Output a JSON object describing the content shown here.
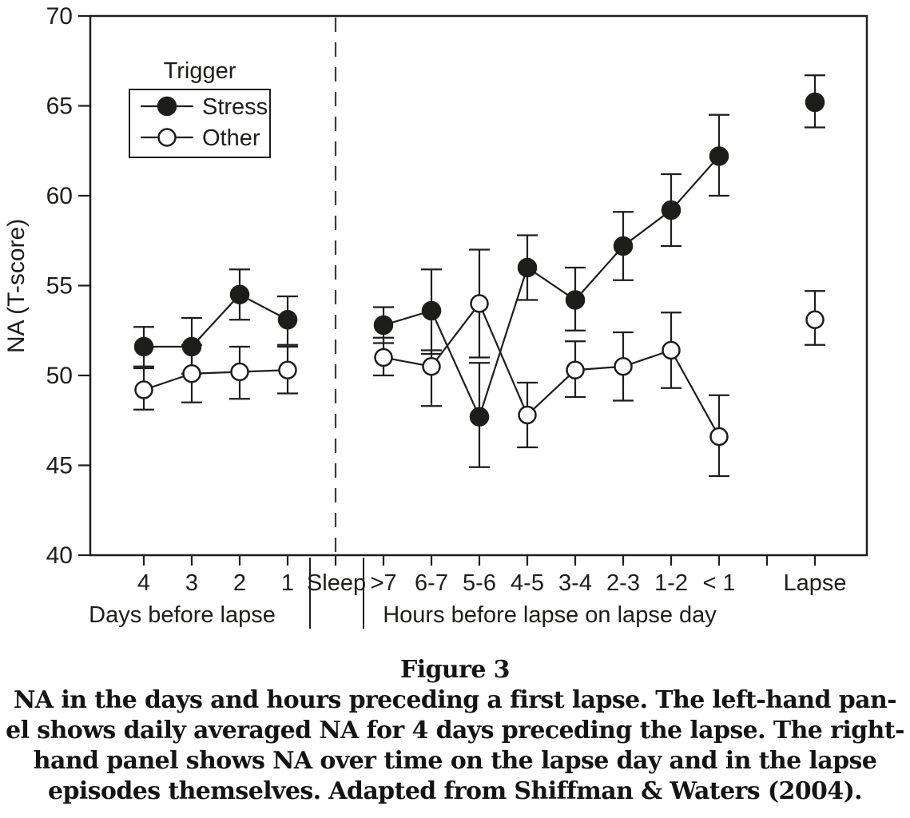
{
  "caption": {
    "title": "Figure 3",
    "lines": [
      "NA in the days and hours preceding a first lapse. The left-hand pan-",
      "el shows daily averaged NA for 4 days preceding the lapse. The right-",
      "hand panel shows NA over time on the lapse day and in the lapse",
      "episodes themselves. Adapted from Shiffman & Waters (2004)."
    ]
  },
  "chart_data": {
    "type": "line",
    "title": "",
    "ylabel": "NA (T-score)",
    "ylim": [
      40,
      70
    ],
    "yticks": [
      40,
      45,
      50,
      55,
      60,
      65,
      70
    ],
    "grid": false,
    "ink_color": "#1d1d1b",
    "background_color": "#ffffff",
    "legend": {
      "title": "Trigger",
      "position": "upper-left",
      "entries": [
        {
          "label": "Stress",
          "marker": "filled-circle"
        },
        {
          "label": "Other",
          "marker": "open-circle"
        }
      ]
    },
    "divider": {
      "label": "Sleep",
      "style": "dashed-vertical-line"
    },
    "panels": [
      {
        "name": "days",
        "xlabel": "Days before lapse",
        "categories": [
          "4",
          "3",
          "2",
          "1"
        ],
        "connect": true,
        "series": [
          {
            "name": "Stress",
            "marker": "filled-circle",
            "values": [
              51.6,
              51.6,
              54.5,
              53.1
            ],
            "err_lo": [
              50.5,
              50.1,
              53.1,
              51.7
            ],
            "err_hi": [
              52.7,
              53.2,
              55.9,
              54.4
            ]
          },
          {
            "name": "Other",
            "marker": "open-circle",
            "values": [
              49.2,
              50.1,
              50.2,
              50.3
            ],
            "err_lo": [
              48.1,
              48.5,
              48.7,
              49.0
            ],
            "err_hi": [
              50.4,
              51.7,
              51.6,
              51.6
            ]
          }
        ]
      },
      {
        "name": "hours",
        "xlabel": "Hours before lapse on lapse day",
        "categories": [
          ">7",
          "6-7",
          "5-6",
          "4-5",
          "3-4",
          "2-3",
          "1-2",
          "< 1"
        ],
        "connect": true,
        "series": [
          {
            "name": "Stress",
            "marker": "filled-circle",
            "values": [
              52.8,
              53.6,
              47.7,
              56.0,
              54.2,
              57.2,
              59.2,
              62.2
            ],
            "err_lo": [
              51.8,
              51.2,
              44.9,
              54.2,
              52.5,
              55.3,
              57.2,
              60.0
            ],
            "err_hi": [
              53.8,
              55.9,
              50.7,
              57.8,
              56.0,
              59.1,
              61.2,
              64.5
            ]
          },
          {
            "name": "Other",
            "marker": "open-circle",
            "values": [
              51.0,
              50.5,
              54.0,
              47.8,
              50.3,
              50.5,
              51.4,
              46.6
            ],
            "err_lo": [
              50.0,
              48.3,
              51.0,
              46.0,
              48.8,
              48.6,
              49.3,
              44.4
            ],
            "err_hi": [
              52.1,
              51.4,
              57.0,
              49.6,
              51.9,
              52.4,
              53.5,
              48.9
            ]
          }
        ]
      },
      {
        "name": "lapse",
        "xlabel": "",
        "categories": [
          "Lapse"
        ],
        "connect": false,
        "series": [
          {
            "name": "Stress",
            "marker": "filled-circle",
            "values": [
              65.2
            ],
            "err_lo": [
              63.8
            ],
            "err_hi": [
              66.7
            ]
          },
          {
            "name": "Other",
            "marker": "open-circle",
            "values": [
              53.1
            ],
            "err_lo": [
              51.7
            ],
            "err_hi": [
              54.7
            ]
          }
        ]
      }
    ]
  }
}
